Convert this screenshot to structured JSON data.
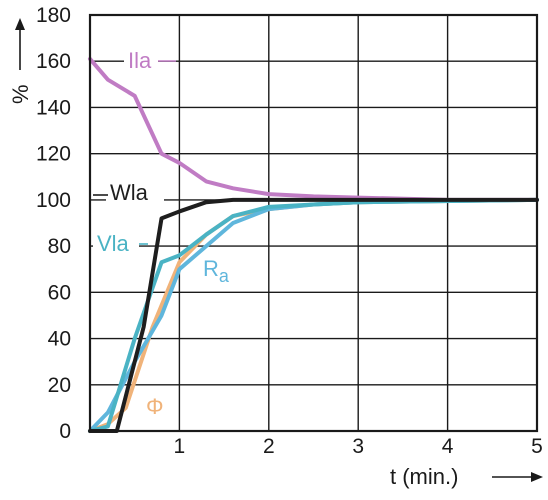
{
  "chart_data": {
    "type": "line",
    "xlabel": "t (min.)",
    "ylabel": "%",
    "xlim": [
      0,
      5
    ],
    "ylim": [
      0,
      180
    ],
    "xticks": [
      0,
      1,
      2,
      3,
      4,
      5
    ],
    "yticks": [
      0,
      20,
      40,
      60,
      80,
      100,
      120,
      140,
      160,
      180
    ],
    "grid": true,
    "series": [
      {
        "name": "Ila",
        "color": "#c07cc4",
        "x": [
          0,
          0.2,
          0.5,
          0.8,
          1.0,
          1.3,
          1.6,
          2.0,
          2.5,
          3.0,
          4.0,
          5.0
        ],
        "y": [
          161,
          152,
          145,
          120,
          116,
          108,
          105,
          102.5,
          101.5,
          101,
          100,
          100
        ]
      },
      {
        "name": "Wla",
        "color": "#1e1e1e",
        "x": [
          0,
          0.3,
          0.6,
          0.8,
          1.0,
          1.3,
          1.6,
          2.0,
          5.0
        ],
        "y": [
          0,
          0,
          45,
          92,
          95,
          99,
          100,
          100,
          100
        ]
      },
      {
        "name": "Vla",
        "color": "#4ab3c4",
        "x": [
          0,
          0.2,
          0.5,
          0.8,
          1.0,
          1.3,
          1.6,
          2.0,
          2.5,
          3.0,
          5.0
        ],
        "y": [
          0,
          2,
          40,
          73,
          76,
          85,
          93,
          97,
          98,
          99,
          100
        ]
      },
      {
        "name": "Ra",
        "color": "#5fb6dc",
        "x": [
          0,
          0.2,
          0.5,
          0.8,
          1.0,
          1.3,
          1.6,
          2.0,
          2.5,
          3.0,
          5.0
        ],
        "y": [
          0,
          8,
          30,
          50,
          70,
          80,
          90,
          96,
          98,
          99,
          100
        ]
      },
      {
        "name": "Φ",
        "color": "#f0b37a",
        "x": [
          0,
          0.2,
          0.4,
          0.7,
          1.0,
          1.3,
          1.6,
          2.0,
          2.5,
          3.0,
          5.0
        ],
        "y": [
          0,
          3,
          10,
          45,
          73,
          85,
          93,
          96,
          98,
          99,
          100
        ]
      }
    ]
  }
}
